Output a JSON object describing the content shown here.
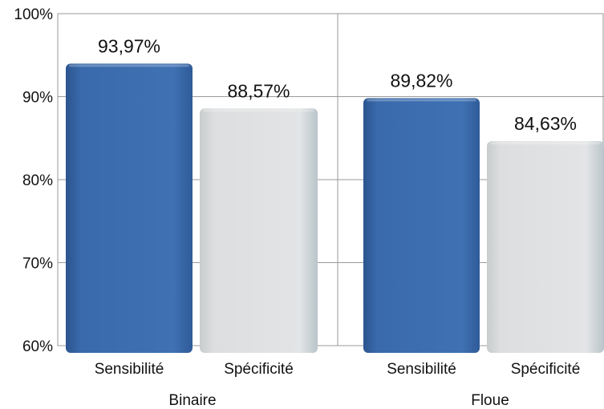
{
  "chart_data": {
    "type": "bar",
    "title": "",
    "xlabel": "",
    "ylabel": "",
    "ylim": [
      60,
      100
    ],
    "y_ticks": [
      "100%",
      "90%",
      "80%",
      "70%",
      "60%"
    ],
    "grid": true,
    "legend": "none",
    "groups": [
      {
        "name": "Binaire",
        "bars": [
          {
            "category": "Sensibilité",
            "value": 93.97,
            "label": "93,97%",
            "color": "#3a6aab"
          },
          {
            "category": "Spécificité",
            "value": 88.57,
            "label": "88,57%",
            "color": "#d8dadb"
          }
        ]
      },
      {
        "name": "Floue",
        "bars": [
          {
            "category": "Sensibilité",
            "value": 89.82,
            "label": "89,82%",
            "color": "#3a6aab"
          },
          {
            "category": "Spécificité",
            "value": 84.63,
            "label": "84,63%",
            "color": "#d8dadb"
          }
        ]
      }
    ]
  }
}
